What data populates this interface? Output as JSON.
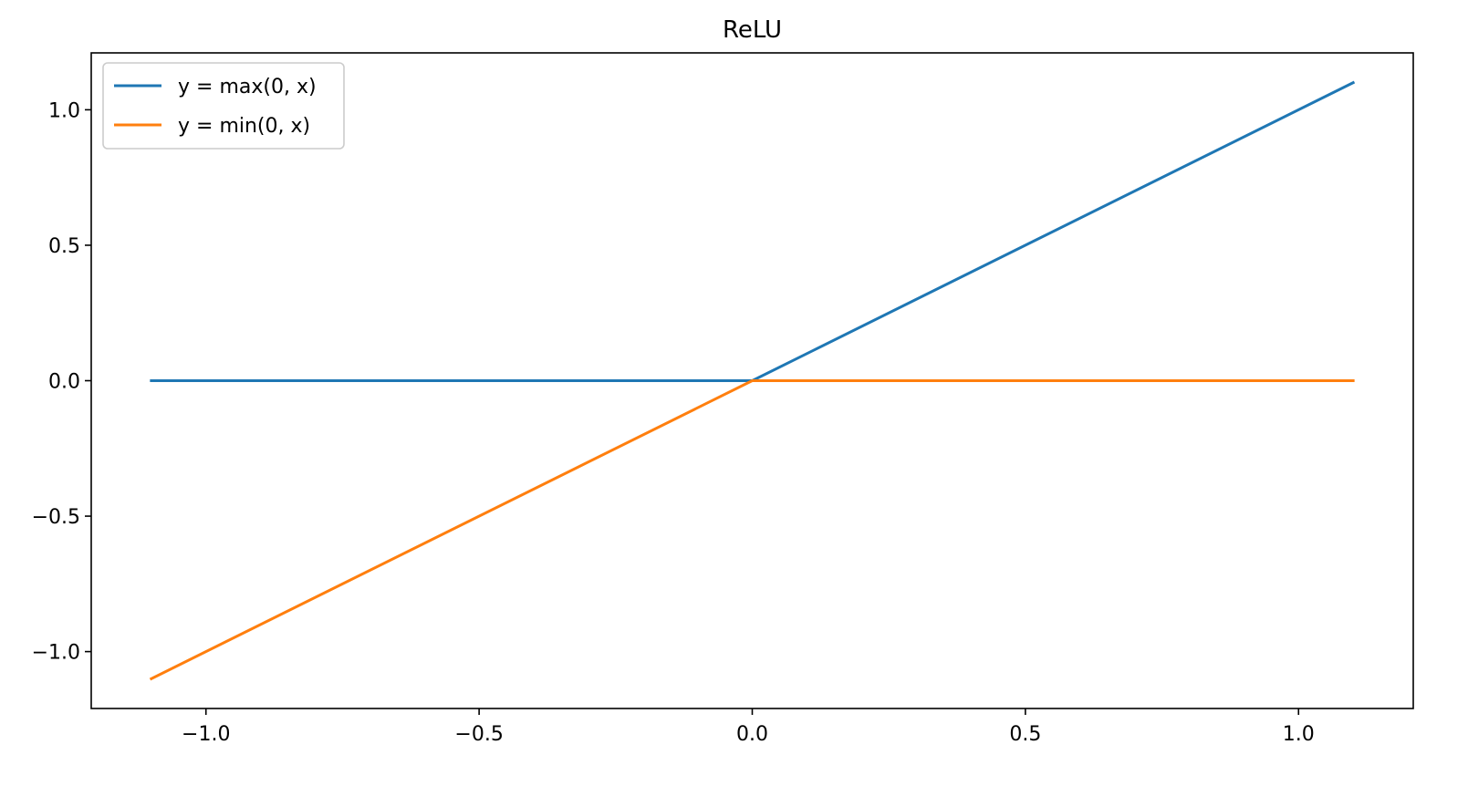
{
  "chart_data": {
    "type": "line",
    "title": "ReLU",
    "xlabel": "",
    "ylabel": "",
    "xlim": [
      -1.21,
      1.21
    ],
    "ylim": [
      -1.21,
      1.21
    ],
    "x_ticks": [
      -1.0,
      -0.5,
      0.0,
      0.5,
      1.0
    ],
    "x_tick_labels": [
      "−1.0",
      "−0.5",
      "0.0",
      "0.5",
      "1.0"
    ],
    "y_ticks": [
      -1.0,
      -0.5,
      0.0,
      0.5,
      1.0
    ],
    "y_tick_labels": [
      "−1.0",
      "−0.5",
      "0.0",
      "0.5",
      "1.0"
    ],
    "grid": false,
    "legend_position": "top-left",
    "series": [
      {
        "name": "y = max(0, x)",
        "color": "#1f77b4",
        "x": [
          -1.1,
          0.0,
          1.1
        ],
        "y": [
          0.0,
          0.0,
          1.1
        ]
      },
      {
        "name": "y = min(0, x)",
        "color": "#ff7f0e",
        "x": [
          -1.1,
          0.0,
          1.1
        ],
        "y": [
          -1.1,
          0.0,
          0.0
        ]
      }
    ]
  }
}
